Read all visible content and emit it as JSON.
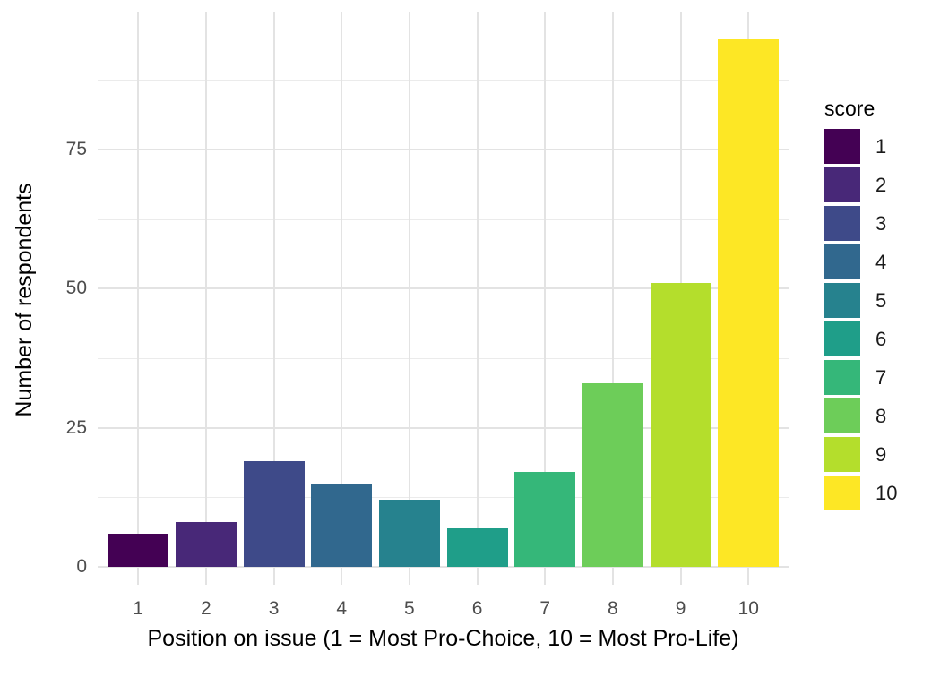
{
  "chart_data": {
    "type": "bar",
    "title": "",
    "xlabel": "Position on issue (1 = Most Pro-Choice, 10 = Most Pro-Life)",
    "ylabel": "Number of respondents",
    "categories": [
      "1",
      "2",
      "3",
      "4",
      "5",
      "6",
      "7",
      "8",
      "9",
      "10"
    ],
    "values": [
      6,
      8,
      19,
      15,
      12,
      7,
      17,
      33,
      51,
      95
    ],
    "colors": [
      "#440154",
      "#482878",
      "#3E4A89",
      "#31688E",
      "#26828E",
      "#1F9E89",
      "#35B779",
      "#6DCD59",
      "#B4DE2C",
      "#FDE725"
    ],
    "y_ticks": [
      0,
      25,
      50,
      75
    ],
    "y_minor_ticks": [
      12.5,
      37.5,
      62.5,
      87.5
    ],
    "ylim": [
      0,
      100
    ],
    "grid": true,
    "legend": {
      "title": "score",
      "position": "right"
    }
  },
  "colors": {
    "background": "#FFFFFF",
    "grid_major": "#E3E3E3",
    "grid_minor": "#EBEBEB",
    "tick_text": "#4D4D4D",
    "title_text": "#000000"
  }
}
